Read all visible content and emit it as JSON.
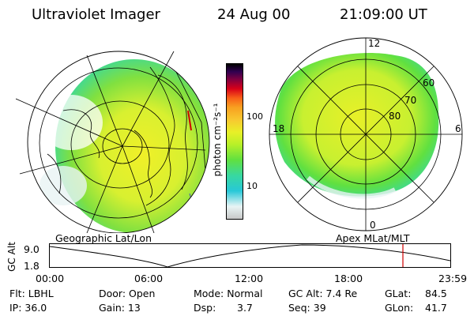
{
  "header": {
    "instrument": "Ultraviolet Imager",
    "date": "24 Aug 00",
    "time": "21:09:00 UT"
  },
  "colorbar": {
    "unit_label": "photon cm⁻²s⁻¹",
    "tick_100": "100",
    "tick_10": "10",
    "colors": [
      "#c8c8c8",
      "#e8f4f4",
      "#28c8d8",
      "#38d8a0",
      "#60e040",
      "#b8f028",
      "#e8f028",
      "#f8c830",
      "#f8a020",
      "#f86018",
      "#d80018",
      "#800040",
      "#300050",
      "#000000"
    ]
  },
  "geo_panel": {
    "caption": "Geographic Lat/Lon"
  },
  "polar_panel": {
    "caption": "Apex MLat/MLT",
    "mlt_top": "12",
    "mlt_right": "6",
    "mlt_left": "18",
    "mlt_bottom": "0",
    "lat_60": "60",
    "lat_70": "70",
    "lat_80": "80"
  },
  "altitude_plot": {
    "ylabel": "GC Alt",
    "y_max": "9.0",
    "y_min": "1.8",
    "x_ticks": [
      "00:00",
      "06:00",
      "12:00",
      "18:00",
      "23:59"
    ],
    "current_time_color": "#d00000"
  },
  "footer": {
    "row1": {
      "filter": "Flt: LBHL",
      "door": "Door: Open",
      "mode": "Mode: Normal",
      "gc_alt": "GC Alt: 7.4 Re",
      "glat_label": "GLat:",
      "glat_value": "84.5"
    },
    "row2": {
      "ip": "IP: 36.0",
      "gain": "Gain: 13",
      "dsp_label": "Dsp:",
      "dsp_value": "3.7",
      "seq": "Seq: 39",
      "glon_label": "GLon:",
      "glon_value": "41.7"
    }
  }
}
